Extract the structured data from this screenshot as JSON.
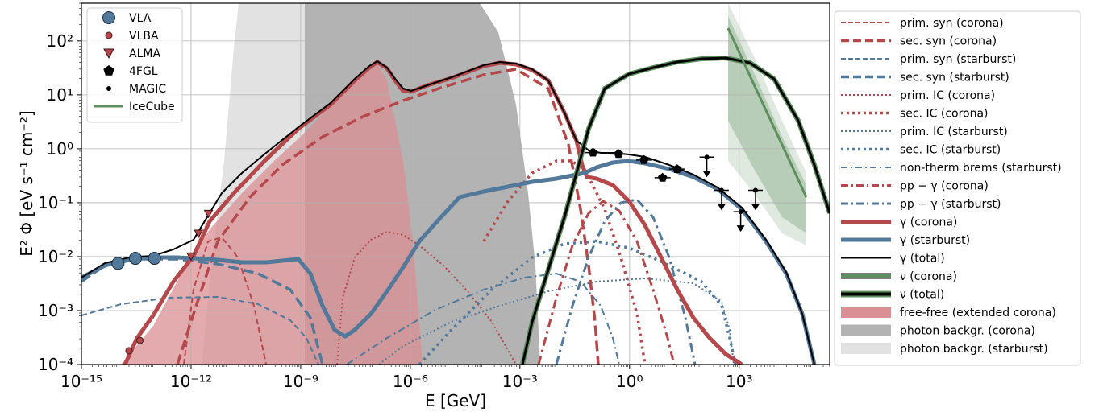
{
  "chart_data": {
    "type": "line",
    "xlabel": "E [GeV]",
    "ylabel": "E² Φ [eV s⁻¹ cm⁻²]",
    "xscale": "log",
    "yscale": "log",
    "xlim": [
      1e-15,
      300000.0
    ],
    "ylim": [
      0.0001,
      500
    ],
    "grid": true,
    "x_ticks": [
      "10⁻¹⁵",
      "10⁻¹²",
      "10⁻⁹",
      "10⁻⁶",
      "10⁻³",
      "10⁰",
      "10³"
    ],
    "y_ticks": [
      "10⁻⁴",
      "10⁻³",
      "10⁻²",
      "10⁻¹",
      "10⁰",
      "10¹",
      "10²"
    ],
    "colors": {
      "corona": "#b5484b",
      "starburst": "#52789a",
      "total": "#000000",
      "neutrino": "#5e8f5e",
      "freefree": "#d98f93",
      "bg_corona": "#b3b3b3",
      "bg_starburst": "#e2e2e2"
    },
    "legend_main": {
      "placement": "upper-left",
      "entries": [
        {
          "label": "VLA",
          "marker": "circle",
          "color": "#52789a"
        },
        {
          "label": "VLBA",
          "marker": "small-circle",
          "color": "#b5484b"
        },
        {
          "label": "ALMA",
          "marker": "triangle-down",
          "color": "#b5484b"
        },
        {
          "label": "4FGL",
          "marker": "pentagon",
          "color": "#000000"
        },
        {
          "label": "MAGIC",
          "marker": "dot",
          "color": "#000000"
        },
        {
          "label": "IceCube",
          "marker": "line",
          "color": "#5e8f5e"
        }
      ]
    },
    "legend_side": {
      "placement": "outside-right",
      "entries": [
        {
          "label": "prim. syn (corona)",
          "style": "dashed-thin",
          "color": "#b5484b"
        },
        {
          "label": "sec. syn (corona)",
          "style": "dashed-thick",
          "color": "#b5484b"
        },
        {
          "label": "prim. syn (starburst)",
          "style": "dashed-thin",
          "color": "#52789a"
        },
        {
          "label": "sec. syn (starburst)",
          "style": "dashed-thick",
          "color": "#52789a"
        },
        {
          "label": "prim. IC (corona)",
          "style": "dotted-thin",
          "color": "#b5484b"
        },
        {
          "label": "sec. IC (corona)",
          "style": "dotted-thick",
          "color": "#b5484b"
        },
        {
          "label": "prim. IC (starburst)",
          "style": "dotted-thin",
          "color": "#52789a"
        },
        {
          "label": "sec. IC (starburst)",
          "style": "dotted-thick",
          "color": "#52789a"
        },
        {
          "label": "non-therm brems (starburst)",
          "style": "dashdot-thin",
          "color": "#52789a"
        },
        {
          "label": "pp − γ (corona)",
          "style": "dashdot",
          "color": "#b5484b"
        },
        {
          "label": "pp − γ (starburst)",
          "style": "dashdot",
          "color": "#52789a"
        },
        {
          "label": "γ (corona)",
          "style": "solid-thick",
          "color": "#b5484b"
        },
        {
          "label": "γ (starburst)",
          "style": "solid-thick",
          "color": "#52789a"
        },
        {
          "label": "γ (total)",
          "style": "solid",
          "color": "#000000"
        },
        {
          "label": "ν (corona)",
          "style": "solid-outlined",
          "color": "#5e8f5e"
        },
        {
          "label": "ν (total)",
          "style": "solid-outlined-black",
          "color": "#000000"
        },
        {
          "label": "free-free (extended corona)",
          "style": "patch",
          "color": "#d98f93"
        },
        {
          "label": "photon backgr. (corona)",
          "style": "patch",
          "color": "#b3b3b3"
        },
        {
          "label": "photon backgr. (starburst)",
          "style": "patch",
          "color": "#e2e2e2"
        }
      ]
    },
    "data_points": {
      "VLA": [
        [
          1e-14,
          0.0075
        ],
        [
          3e-14,
          0.0093
        ],
        [
          1e-13,
          0.0093
        ]
      ],
      "VLBA": [
        [
          2e-14,
          0.00018
        ],
        [
          4e-14,
          0.00028
        ]
      ],
      "ALMA": [
        [
          1e-12,
          0.0102
        ],
        [
          1.6e-12,
          0.027
        ],
        [
          3e-12,
          0.063
        ]
      ],
      "4FGL": [
        [
          0.1,
          0.85
        ],
        [
          0.5,
          0.8
        ],
        [
          2.5,
          0.62
        ],
        [
          8,
          0.29
        ],
        [
          20,
          0.42
        ]
      ],
      "MAGIC": [
        [
          130,
          0.7
        ],
        [
          330,
          0.17
        ],
        [
          1100,
          0.068
        ],
        [
          2800,
          0.17
        ]
      ]
    },
    "series": [
      {
        "name": "γ (total)",
        "x": [
          1e-15,
          1e-14,
          1e-13,
          1e-12,
          1e-11,
          1e-10,
          1e-09,
          1e-08,
          3e-08,
          6e-08,
          2e-07,
          5e-07,
          1e-06,
          1e-05,
          3e-05,
          0.0001,
          0.001,
          0.005,
          0.01,
          0.03,
          0.1,
          1,
          10,
          100,
          1000,
          3000,
          10000.0
        ],
        "y": [
          0.0044,
          0.0075,
          0.0095,
          0.015,
          0.09,
          0.6,
          3.5,
          15,
          38,
          43,
          18,
          10,
          13,
          24,
          33,
          38,
          28,
          5,
          1.4,
          0.9,
          0.85,
          0.6,
          0.35,
          0.1,
          0.02,
          0.004,
          0.0001
        ]
      },
      {
        "name": "γ (corona)",
        "x": [
          3e-14,
          1e-13,
          1e-12,
          1e-11,
          1e-10,
          1e-09,
          1e-08,
          6e-08,
          2e-07,
          1e-06,
          0.0001,
          0.001,
          0.005,
          0.01,
          0.03,
          0.1,
          1,
          10,
          100,
          1000
        ],
        "y": [
          0.00012,
          0.0004,
          0.005,
          0.09,
          0.6,
          3.5,
          15,
          42,
          18,
          13,
          35,
          28,
          5,
          1.4,
          0.25,
          0.12,
          0.06,
          0.002,
          0.0004,
          0.0001
        ]
      },
      {
        "name": "γ (starburst)",
        "x": [
          1e-15,
          1e-14,
          1e-13,
          1e-12,
          1e-11,
          1e-10,
          1e-09,
          1e-08,
          3e-08,
          1e-07,
          1e-06,
          1e-05,
          0.0001,
          0.001,
          0.01,
          0.1,
          1,
          10,
          100,
          1000,
          3000
        ],
        "y": [
          0.0045,
          0.0087,
          0.0092,
          0.0085,
          0.0075,
          0.0085,
          0.0098,
          0.0012,
          0.00035,
          0.0009,
          0.02,
          0.15,
          0.2,
          0.27,
          0.35,
          0.5,
          0.55,
          0.35,
          0.1,
          0.02,
          0.002
        ]
      },
      {
        "name": "ν (corona)",
        "x": [
          0.0003,
          0.001,
          0.01,
          0.1,
          1,
          10,
          100,
          1000,
          10000.0,
          100000.0,
          300000.0
        ],
        "y": [
          0.0001,
          0.004,
          0.35,
          8,
          25,
          38,
          48,
          40,
          15,
          2,
          0.3
        ]
      },
      {
        "name": "ν (total)",
        "x": [
          0.0003,
          0.001,
          0.01,
          0.1,
          1,
          10,
          100,
          1000,
          10000.0,
          100000.0,
          300000.0
        ],
        "y": [
          0.0001,
          0.004,
          0.35,
          8,
          25,
          38,
          48,
          40,
          15,
          2,
          0.3
        ]
      },
      {
        "name": "IceCube",
        "x": [
          300,
          1000,
          10000.0,
          50000.0
        ],
        "y": [
          190,
          60,
          6,
          1
        ]
      }
    ]
  }
}
